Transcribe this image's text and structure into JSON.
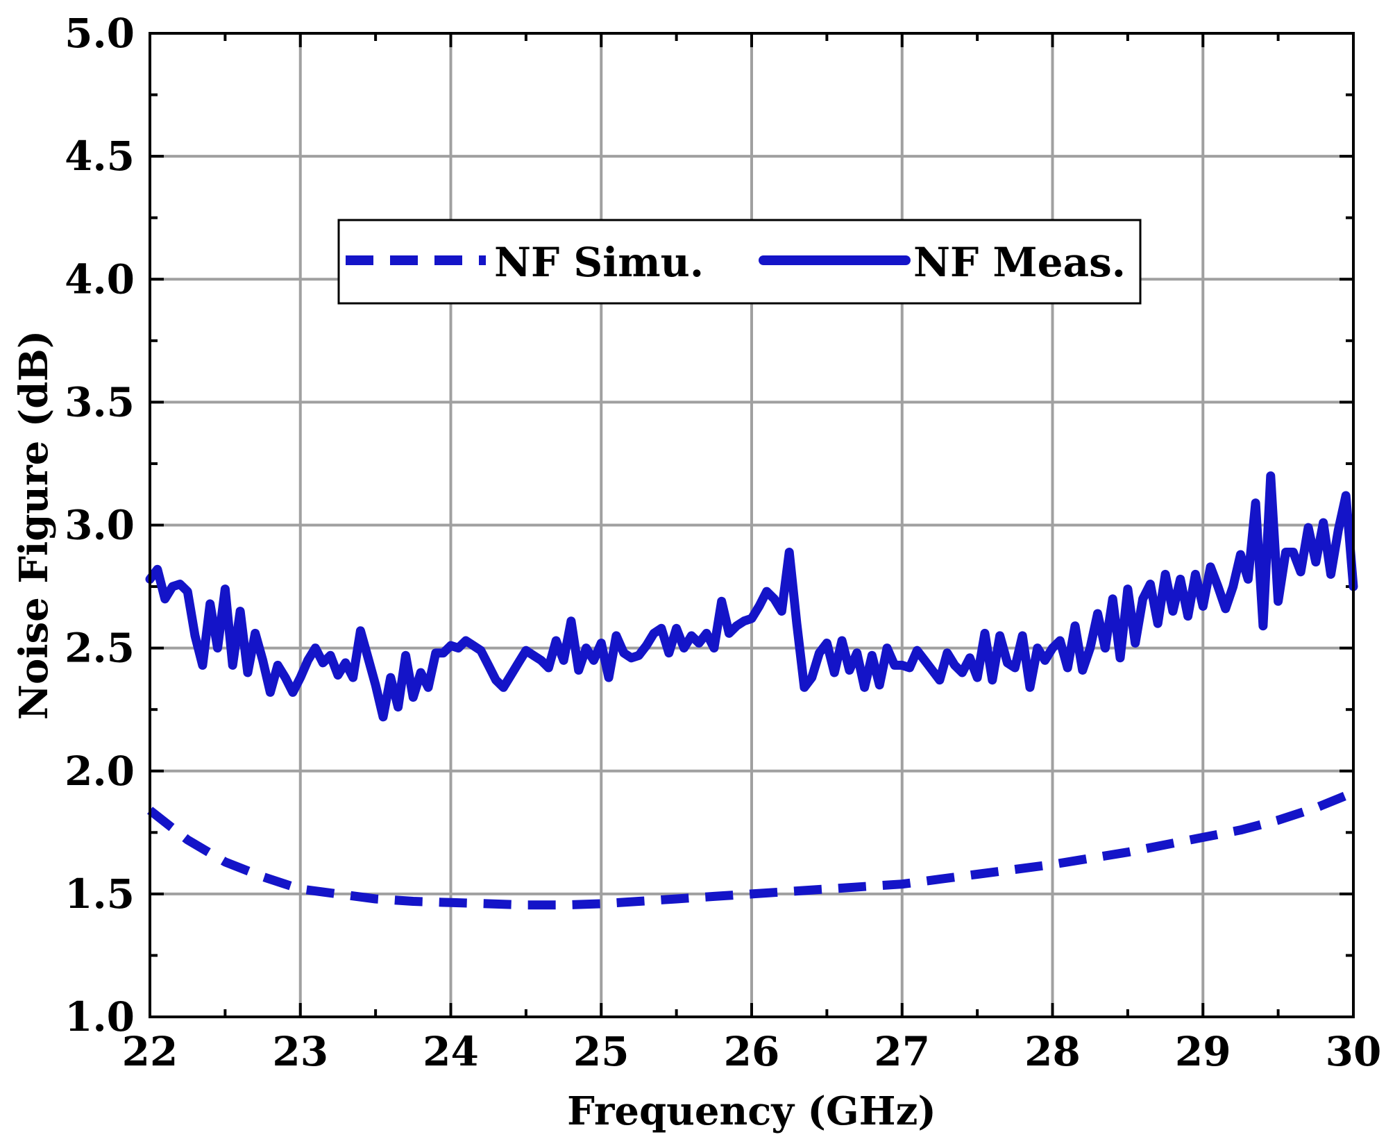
{
  "chart_data": {
    "type": "line",
    "title": "",
    "xlabel": "Frequency (GHz)",
    "ylabel": "Noise Figure (dB)",
    "xlim": [
      22,
      30
    ],
    "ylim": [
      1.0,
      5.0
    ],
    "x_ticks": [
      22,
      23,
      24,
      25,
      26,
      27,
      28,
      29,
      30
    ],
    "x_tick_labels": [
      "22",
      "23",
      "24",
      "25",
      "26",
      "27",
      "28",
      "29",
      "30"
    ],
    "y_ticks": [
      1.0,
      1.5,
      2.0,
      2.5,
      3.0,
      3.5,
      4.0,
      4.5,
      5.0
    ],
    "y_tick_labels": [
      "1.0",
      "1.5",
      "2.0",
      "2.5",
      "3.0",
      "3.5",
      "4.0",
      "4.5",
      "5.0"
    ],
    "grid": true,
    "legend_position": "upper-center",
    "line_color": "#1414c8",
    "series": [
      {
        "name": "NF Simu.",
        "style": "dashed",
        "x": [
          22.0,
          22.25,
          22.5,
          22.75,
          23.0,
          23.25,
          23.5,
          23.75,
          24.0,
          24.25,
          24.5,
          24.75,
          25.0,
          25.25,
          25.5,
          25.75,
          26.0,
          26.25,
          26.5,
          26.75,
          27.0,
          27.25,
          27.5,
          27.75,
          28.0,
          28.25,
          28.5,
          28.75,
          29.0,
          29.25,
          29.5,
          29.75,
          29.95
        ],
        "y": [
          1.84,
          1.72,
          1.63,
          1.57,
          1.52,
          1.5,
          1.48,
          1.47,
          1.465,
          1.46,
          1.455,
          1.455,
          1.46,
          1.47,
          1.48,
          1.49,
          1.5,
          1.51,
          1.52,
          1.53,
          1.54,
          1.56,
          1.58,
          1.6,
          1.62,
          1.645,
          1.67,
          1.7,
          1.73,
          1.76,
          1.8,
          1.85,
          1.9
        ]
      },
      {
        "name": "NF Meas.",
        "style": "solid",
        "x": [
          22.0,
          22.05,
          22.1,
          22.15,
          22.2,
          22.25,
          22.3,
          22.35,
          22.4,
          22.45,
          22.5,
          22.55,
          22.6,
          22.65,
          22.7,
          22.75,
          22.8,
          22.85,
          22.9,
          22.95,
          23.0,
          23.05,
          23.1,
          23.15,
          23.2,
          23.25,
          23.3,
          23.35,
          23.4,
          23.45,
          23.5,
          23.55,
          23.6,
          23.65,
          23.7,
          23.75,
          23.8,
          23.85,
          23.9,
          23.95,
          24.0,
          24.05,
          24.1,
          24.15,
          24.2,
          24.25,
          24.3,
          24.35,
          24.4,
          24.45,
          24.5,
          24.55,
          24.6,
          24.65,
          24.7,
          24.75,
          24.8,
          24.85,
          24.9,
          24.95,
          25.0,
          25.05,
          25.1,
          25.15,
          25.2,
          25.25,
          25.3,
          25.35,
          25.4,
          25.45,
          25.5,
          25.55,
          25.6,
          25.65,
          25.7,
          25.75,
          25.8,
          25.85,
          25.9,
          25.95,
          26.0,
          26.05,
          26.1,
          26.15,
          26.2,
          26.25,
          26.3,
          26.35,
          26.4,
          26.45,
          26.5,
          26.55,
          26.6,
          26.65,
          26.7,
          26.75,
          26.8,
          26.85,
          26.9,
          26.95,
          27.0,
          27.05,
          27.1,
          27.15,
          27.2,
          27.25,
          27.3,
          27.35,
          27.4,
          27.45,
          27.5,
          27.55,
          27.6,
          27.65,
          27.7,
          27.75,
          27.8,
          27.85,
          27.9,
          27.95,
          28.0,
          28.05,
          28.1,
          28.15,
          28.2,
          28.25,
          28.3,
          28.35,
          28.4,
          28.45,
          28.5,
          28.55,
          28.6,
          28.65,
          28.7,
          28.75,
          28.8,
          28.85,
          28.9,
          28.95,
          29.0,
          29.05,
          29.1,
          29.15,
          29.2,
          29.25,
          29.3,
          29.35,
          29.4,
          29.45,
          29.5,
          29.55,
          29.6,
          29.65,
          29.7,
          29.75,
          29.8,
          29.85,
          29.9,
          29.95,
          30.0
        ],
        "y": [
          2.78,
          2.82,
          2.7,
          2.75,
          2.76,
          2.73,
          2.55,
          2.43,
          2.68,
          2.5,
          2.74,
          2.43,
          2.65,
          2.4,
          2.56,
          2.45,
          2.32,
          2.43,
          2.38,
          2.32,
          2.38,
          2.45,
          2.5,
          2.44,
          2.47,
          2.39,
          2.44,
          2.38,
          2.57,
          2.46,
          2.35,
          2.22,
          2.38,
          2.26,
          2.47,
          2.3,
          2.4,
          2.34,
          2.48,
          2.48,
          2.51,
          2.5,
          2.53,
          2.51,
          2.49,
          2.43,
          2.37,
          2.34,
          2.39,
          2.44,
          2.49,
          2.47,
          2.45,
          2.42,
          2.53,
          2.45,
          2.61,
          2.41,
          2.5,
          2.45,
          2.52,
          2.38,
          2.55,
          2.48,
          2.46,
          2.47,
          2.51,
          2.56,
          2.58,
          2.48,
          2.58,
          2.5,
          2.55,
          2.52,
          2.56,
          2.5,
          2.69,
          2.56,
          2.59,
          2.61,
          2.62,
          2.67,
          2.73,
          2.7,
          2.65,
          2.89,
          2.6,
          2.34,
          2.38,
          2.48,
          2.52,
          2.4,
          2.53,
          2.41,
          2.48,
          2.34,
          2.47,
          2.35,
          2.5,
          2.43,
          2.43,
          2.42,
          2.49,
          2.45,
          2.41,
          2.37,
          2.48,
          2.43,
          2.4,
          2.46,
          2.38,
          2.56,
          2.37,
          2.55,
          2.44,
          2.42,
          2.55,
          2.34,
          2.5,
          2.45,
          2.5,
          2.53,
          2.42,
          2.59,
          2.41,
          2.5,
          2.64,
          2.5,
          2.7,
          2.46,
          2.74,
          2.52,
          2.7,
          2.76,
          2.6,
          2.8,
          2.65,
          2.78,
          2.63,
          2.8,
          2.67,
          2.83,
          2.75,
          2.66,
          2.75,
          2.88,
          2.78,
          3.09,
          2.59,
          3.2,
          2.69,
          2.89,
          2.89,
          2.81,
          2.99,
          2.85,
          3.01,
          2.8,
          2.98,
          3.12,
          2.75
        ]
      }
    ]
  }
}
